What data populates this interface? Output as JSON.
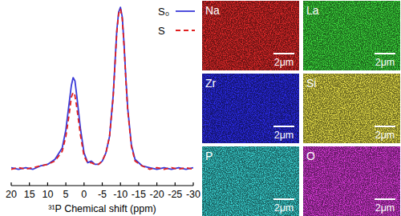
{
  "chart_data": {
    "type": "line",
    "x_label": "³¹P Chemical shift (ppm)",
    "x": [
      20,
      18,
      16,
      14,
      12,
      10,
      8,
      6,
      5,
      4,
      3.5,
      3,
      2.5,
      2,
      1,
      0,
      -1,
      -2,
      -3,
      -4,
      -5,
      -6,
      -7,
      -8,
      -8.5,
      -9,
      -9.5,
      -10,
      -10.5,
      -11,
      -11.5,
      -12,
      -13,
      -14,
      -16,
      -18,
      -20,
      -22,
      -24,
      -26,
      -28,
      -30
    ],
    "series": [
      {
        "name": "S₀",
        "color": "#3a3ad8",
        "line_style": "solid",
        "values": [
          0.01,
          0.0,
          0.01,
          0.0,
          0.02,
          0.03,
          0.06,
          0.13,
          0.24,
          0.42,
          0.51,
          0.56,
          0.54,
          0.45,
          0.25,
          0.1,
          0.04,
          0.05,
          0.03,
          0.03,
          0.05,
          0.1,
          0.2,
          0.45,
          0.65,
          0.85,
          0.96,
          0.99,
          0.93,
          0.76,
          0.55,
          0.37,
          0.15,
          0.06,
          0.02,
          0.01,
          0.0,
          0.01,
          0.0,
          0.01,
          0.0,
          0.01
        ]
      },
      {
        "name": "S",
        "color": "#e02020",
        "line_style": "dashed",
        "values": [
          0.0,
          0.01,
          0.0,
          0.01,
          0.02,
          0.03,
          0.05,
          0.11,
          0.2,
          0.35,
          0.44,
          0.47,
          0.45,
          0.38,
          0.21,
          0.08,
          0.04,
          0.04,
          0.03,
          0.03,
          0.05,
          0.1,
          0.2,
          0.44,
          0.64,
          0.84,
          0.95,
          0.98,
          0.92,
          0.75,
          0.54,
          0.36,
          0.14,
          0.05,
          0.02,
          0.0,
          0.01,
          0.0,
          0.01,
          0.0,
          0.01,
          0.0
        ]
      }
    ],
    "xlim": [
      20,
      -30
    ],
    "xticks": [
      20,
      15,
      10,
      5,
      0,
      -5,
      -10,
      -15,
      -20,
      -25,
      -30
    ],
    "ylim": [
      -0.1,
      1.02
    ],
    "tick_labels": "x",
    "legend": "upper right"
  },
  "maps": [
    {
      "element": "Na",
      "scale_bar": "2μm",
      "color": "#e82a2a"
    },
    {
      "element": "La",
      "scale_bar": "2μm",
      "color": "#3ee03e"
    },
    {
      "element": "Zr",
      "scale_bar": "2μm",
      "color": "#2c2cf0"
    },
    {
      "element": "Si",
      "scale_bar": "2μm",
      "color": "#ece44a"
    },
    {
      "element": "P",
      "scale_bar": "2μm",
      "color": "#3ad6d6"
    },
    {
      "element": "O",
      "scale_bar": "2μm",
      "color": "#dc3adc"
    }
  ]
}
